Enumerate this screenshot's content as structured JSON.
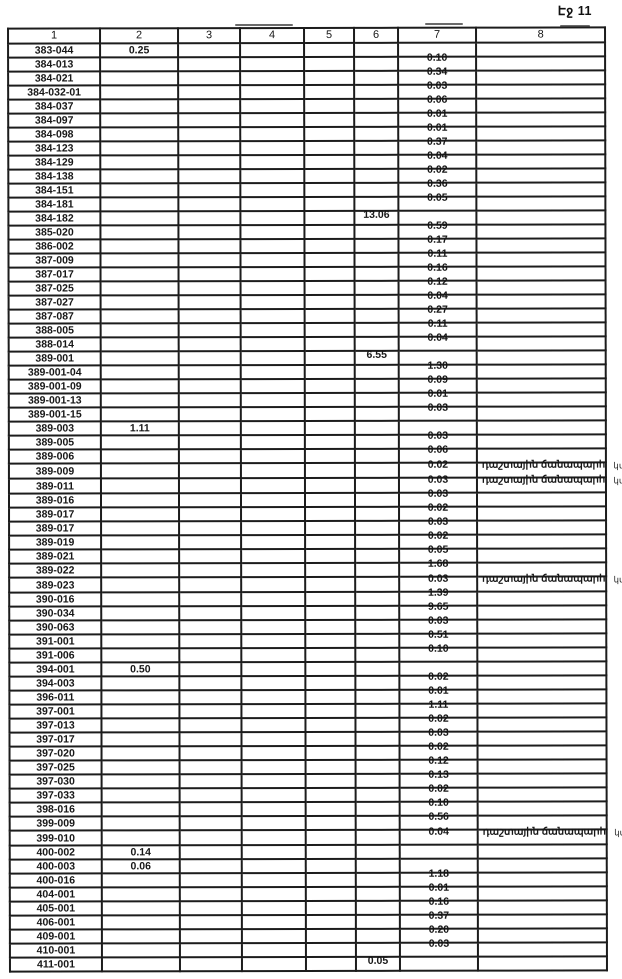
{
  "page": {
    "label": "Էջ 11"
  },
  "table": {
    "headers": [
      "1",
      "2",
      "3",
      "4",
      "5",
      "6",
      "7",
      "8"
    ],
    "rows": [
      {
        "cells": [
          "383-044",
          "0.25",
          "",
          "",
          "",
          "",
          "",
          ""
        ],
        "note": ""
      },
      {
        "cells": [
          "384-013",
          "",
          "",
          "",
          "",
          "",
          "0.10",
          ""
        ],
        "note": ""
      },
      {
        "cells": [
          "384-021",
          "",
          "",
          "",
          "",
          "",
          "0.34",
          ""
        ],
        "note": ""
      },
      {
        "cells": [
          "384-032-01",
          "",
          "",
          "",
          "",
          "",
          "0.03",
          ""
        ],
        "note": ""
      },
      {
        "cells": [
          "384-037",
          "",
          "",
          "",
          "",
          "",
          "0.06",
          ""
        ],
        "note": ""
      },
      {
        "cells": [
          "384-097",
          "",
          "",
          "",
          "",
          "",
          "0.01",
          ""
        ],
        "note": ""
      },
      {
        "cells": [
          "384-098",
          "",
          "",
          "",
          "",
          "",
          "0.01",
          ""
        ],
        "note": ""
      },
      {
        "cells": [
          "384-123",
          "",
          "",
          "",
          "",
          "",
          "0.37",
          ""
        ],
        "note": ""
      },
      {
        "cells": [
          "384-129",
          "",
          "",
          "",
          "",
          "",
          "0.04",
          ""
        ],
        "note": ""
      },
      {
        "cells": [
          "384-138",
          "",
          "",
          "",
          "",
          "",
          "0.02",
          ""
        ],
        "note": ""
      },
      {
        "cells": [
          "384-151",
          "",
          "",
          "",
          "",
          "",
          "0.36",
          ""
        ],
        "note": ""
      },
      {
        "cells": [
          "384-181",
          "",
          "",
          "",
          "",
          "",
          "0.05",
          ""
        ],
        "note": ""
      },
      {
        "cells": [
          "384-182",
          "",
          "",
          "",
          "",
          "13.06",
          "",
          ""
        ],
        "note": ""
      },
      {
        "cells": [
          "385-020",
          "",
          "",
          "",
          "",
          "",
          "0.59",
          ""
        ],
        "note": ""
      },
      {
        "cells": [
          "386-002",
          "",
          "",
          "",
          "",
          "",
          "0.17",
          ""
        ],
        "note": ""
      },
      {
        "cells": [
          "387-009",
          "",
          "",
          "",
          "",
          "",
          "0.11",
          ""
        ],
        "note": ""
      },
      {
        "cells": [
          "387-017",
          "",
          "",
          "",
          "",
          "",
          "0.16",
          ""
        ],
        "note": ""
      },
      {
        "cells": [
          "387-025",
          "",
          "",
          "",
          "",
          "",
          "0.12",
          ""
        ],
        "note": ""
      },
      {
        "cells": [
          "387-027",
          "",
          "",
          "",
          "",
          "",
          "0.04",
          ""
        ],
        "note": ""
      },
      {
        "cells": [
          "387-087",
          "",
          "",
          "",
          "",
          "",
          "0.27",
          ""
        ],
        "note": ""
      },
      {
        "cells": [
          "388-005",
          "",
          "",
          "",
          "",
          "",
          "0.11",
          ""
        ],
        "note": ""
      },
      {
        "cells": [
          "388-014",
          "",
          "",
          "",
          "",
          "",
          "0.04",
          ""
        ],
        "note": ""
      },
      {
        "cells": [
          "389-001",
          "",
          "",
          "",
          "",
          "6.55",
          "",
          ""
        ],
        "note": ""
      },
      {
        "cells": [
          "389-001-04",
          "",
          "",
          "",
          "",
          "",
          "1.30",
          ""
        ],
        "note": ""
      },
      {
        "cells": [
          "389-001-09",
          "",
          "",
          "",
          "",
          "",
          "0.09",
          ""
        ],
        "note": ""
      },
      {
        "cells": [
          "389-001-13",
          "",
          "",
          "",
          "",
          "",
          "0.01",
          ""
        ],
        "note": ""
      },
      {
        "cells": [
          "389-001-15",
          "",
          "",
          "",
          "",
          "",
          "0.03",
          ""
        ],
        "note": ""
      },
      {
        "cells": [
          "389-003",
          "1.11",
          "",
          "",
          "",
          "",
          "",
          ""
        ],
        "note": ""
      },
      {
        "cells": [
          "389-005",
          "",
          "",
          "",
          "",
          "",
          "0.03",
          ""
        ],
        "note": ""
      },
      {
        "cells": [
          "389-006",
          "",
          "",
          "",
          "",
          "",
          "0.06",
          ""
        ],
        "note": ""
      },
      {
        "cells": [
          "389-009",
          "",
          "",
          "",
          "",
          "",
          "0.02",
          "դաշտային ճանապարհ"
        ],
        "note": "կմ"
      },
      {
        "cells": [
          "389-011",
          "",
          "",
          "",
          "",
          "",
          "0.03",
          "դաշտային ճանապարհ"
        ],
        "note": "կմ"
      },
      {
        "cells": [
          "389-016",
          "",
          "",
          "",
          "",
          "",
          "0.03",
          ""
        ],
        "note": ""
      },
      {
        "cells": [
          "389-017",
          "",
          "",
          "",
          "",
          "",
          "0.02",
          ""
        ],
        "note": ""
      },
      {
        "cells": [
          "389-017",
          "",
          "",
          "",
          "",
          "",
          "0.03",
          ""
        ],
        "note": ""
      },
      {
        "cells": [
          "389-019",
          "",
          "",
          "",
          "",
          "",
          "0.02",
          ""
        ],
        "note": ""
      },
      {
        "cells": [
          "389-021",
          "",
          "",
          "",
          "",
          "",
          "0.05",
          ""
        ],
        "note": ""
      },
      {
        "cells": [
          "389-022",
          "",
          "",
          "",
          "",
          "",
          "1.68",
          ""
        ],
        "note": ""
      },
      {
        "cells": [
          "389-023",
          "",
          "",
          "",
          "",
          "",
          "0.03",
          "դաշտային ճանապարհ"
        ],
        "note": "կմ"
      },
      {
        "cells": [
          "390-016",
          "",
          "",
          "",
          "",
          "",
          "1.39",
          ""
        ],
        "note": ""
      },
      {
        "cells": [
          "390-034",
          "",
          "",
          "",
          "",
          "",
          "9.65",
          ""
        ],
        "note": ""
      },
      {
        "cells": [
          "390-063",
          "",
          "",
          "",
          "",
          "",
          "0.03",
          ""
        ],
        "note": ""
      },
      {
        "cells": [
          "391-001",
          "",
          "",
          "",
          "",
          "",
          "0.51",
          ""
        ],
        "note": ""
      },
      {
        "cells": [
          "391-006",
          "",
          "",
          "",
          "",
          "",
          "0.10",
          ""
        ],
        "note": ""
      },
      {
        "cells": [
          "394-001",
          "0.50",
          "",
          "",
          "",
          "",
          "",
          ""
        ],
        "note": ""
      },
      {
        "cells": [
          "394-003",
          "",
          "",
          "",
          "",
          "",
          "0.02",
          ""
        ],
        "note": ""
      },
      {
        "cells": [
          "396-011",
          "",
          "",
          "",
          "",
          "",
          "0.01",
          ""
        ],
        "note": ""
      },
      {
        "cells": [
          "397-001",
          "",
          "",
          "",
          "",
          "",
          "1.11",
          ""
        ],
        "note": ""
      },
      {
        "cells": [
          "397-013",
          "",
          "",
          "",
          "",
          "",
          "0.02",
          ""
        ],
        "note": ""
      },
      {
        "cells": [
          "397-017",
          "",
          "",
          "",
          "",
          "",
          "0.03",
          ""
        ],
        "note": ""
      },
      {
        "cells": [
          "397-020",
          "",
          "",
          "",
          "",
          "",
          "0.02",
          ""
        ],
        "note": ""
      },
      {
        "cells": [
          "397-025",
          "",
          "",
          "",
          "",
          "",
          "0.12",
          ""
        ],
        "note": ""
      },
      {
        "cells": [
          "397-030",
          "",
          "",
          "",
          "",
          "",
          "0.13",
          ""
        ],
        "note": ""
      },
      {
        "cells": [
          "397-033",
          "",
          "",
          "",
          "",
          "",
          "0.02",
          ""
        ],
        "note": ""
      },
      {
        "cells": [
          "398-016",
          "",
          "",
          "",
          "",
          "",
          "0.10",
          ""
        ],
        "note": ""
      },
      {
        "cells": [
          "399-009",
          "",
          "",
          "",
          "",
          "",
          "0.56",
          ""
        ],
        "note": ""
      },
      {
        "cells": [
          "399-010",
          "",
          "",
          "",
          "",
          "",
          "0.04",
          "դաշտային ճանապարհ"
        ],
        "note": "կմ"
      },
      {
        "cells": [
          "400-002",
          "0.14",
          "",
          "",
          "",
          "",
          "",
          ""
        ],
        "note": ""
      },
      {
        "cells": [
          "400-003",
          "0.06",
          "",
          "",
          "",
          "",
          "",
          ""
        ],
        "note": ""
      },
      {
        "cells": [
          "400-016",
          "",
          "",
          "",
          "",
          "",
          "1.18",
          ""
        ],
        "note": ""
      },
      {
        "cells": [
          "404-001",
          "",
          "",
          "",
          "",
          "",
          "0.01",
          ""
        ],
        "note": ""
      },
      {
        "cells": [
          "405-001",
          "",
          "",
          "",
          "",
          "",
          "0.16",
          ""
        ],
        "note": ""
      },
      {
        "cells": [
          "406-001",
          "",
          "",
          "",
          "",
          "",
          "0.37",
          ""
        ],
        "note": ""
      },
      {
        "cells": [
          "409-001",
          "",
          "",
          "",
          "",
          "",
          "0.20",
          ""
        ],
        "note": ""
      },
      {
        "cells": [
          "410-001",
          "",
          "",
          "",
          "",
          "",
          "0.03",
          ""
        ],
        "note": ""
      },
      {
        "cells": [
          "411-001",
          "",
          "",
          "",
          "",
          "0.05",
          "",
          ""
        ],
        "note": ""
      }
    ]
  },
  "colors": {
    "ink": "#1c1c1c",
    "paper": "#ffffff"
  }
}
